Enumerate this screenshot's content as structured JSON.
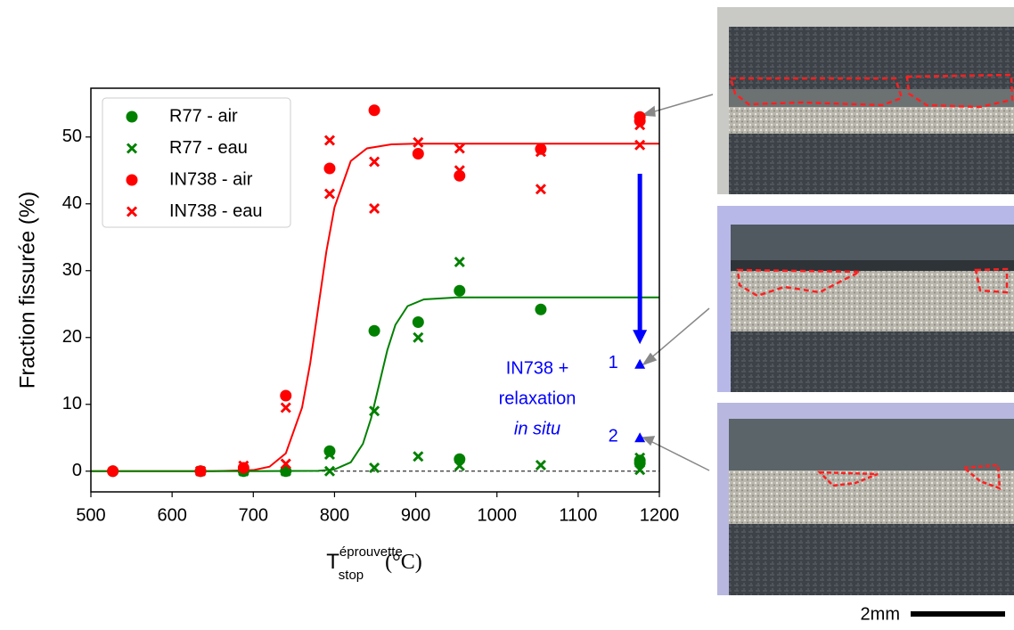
{
  "chart_data": {
    "type": "scatter",
    "ylabel": "Fraction fissurée (%)",
    "xlabel": {
      "main": "T",
      "sup": "éprouvette",
      "sub": "stop",
      "unit": "(°C)"
    },
    "xlim": [
      500,
      1200
    ],
    "ylim": [
      -3.1,
      57.3
    ],
    "xticks": [
      500,
      600,
      700,
      800,
      900,
      1000,
      1100,
      1200
    ],
    "yticks": [
      0,
      10,
      20,
      30,
      40,
      50
    ],
    "zero_line": true,
    "legend": "upper left",
    "series": [
      {
        "name": "R77 - air",
        "color": "#008000",
        "marker": "o",
        "x": [
          527,
          635,
          688,
          740,
          794,
          849,
          903,
          954,
          954,
          1054,
          1176,
          1176
        ],
        "values": [
          0,
          0,
          0,
          0,
          3,
          21,
          22.3,
          27,
          1.8,
          24.2,
          1.2,
          1.6
        ]
      },
      {
        "name": "R77 - eau",
        "color": "#008000",
        "marker": "x",
        "x": [
          635,
          688,
          740,
          794,
          794,
          849,
          849,
          903,
          903,
          954,
          954,
          1054,
          1176,
          1176
        ],
        "values": [
          0,
          0,
          0,
          2.5,
          0,
          9,
          0.5,
          20,
          2.2,
          31.3,
          0.8,
          0.9,
          2,
          0.2
        ]
      },
      {
        "name": "IN738 - air",
        "color": "#ff0000",
        "marker": "o",
        "x": [
          527,
          635,
          688,
          740,
          794,
          849,
          903,
          954,
          1054,
          1176,
          1176
        ],
        "values": [
          0,
          0,
          0.5,
          11.3,
          45.3,
          54,
          47.5,
          44.2,
          48.2,
          53,
          52.4
        ]
      },
      {
        "name": "IN738 - eau",
        "color": "#ff0000",
        "marker": "x",
        "x": [
          635,
          688,
          740,
          740,
          794,
          794,
          849,
          849,
          903,
          954,
          954,
          1054,
          1054,
          1176,
          1176
        ],
        "values": [
          0,
          0.8,
          9.5,
          1.1,
          49.5,
          41.5,
          46.3,
          39.3,
          49.2,
          48.3,
          45,
          47.8,
          42.2,
          51.8,
          48.8
        ]
      }
    ],
    "fits": [
      {
        "color": "#ff0000",
        "x": [
          500,
          600,
          650,
          700,
          720,
          740,
          760,
          770,
          780,
          790,
          800,
          820,
          840,
          870,
          900,
          1000,
          1200
        ],
        "values": [
          0,
          0,
          0,
          0.16,
          0.67,
          2.66,
          9.5,
          16.1,
          24.5,
          32.9,
          39.5,
          46.4,
          48.3,
          48.9,
          49,
          49,
          49
        ]
      },
      {
        "color": "#008000",
        "x": [
          500,
          700,
          780,
          800,
          820,
          835,
          845,
          855,
          865,
          875,
          890,
          910,
          950,
          1200
        ],
        "values": [
          0,
          0,
          0.05,
          0.26,
          1.33,
          4.1,
          7.9,
          13,
          18.1,
          21.9,
          24.7,
          25.7,
          26,
          26
        ]
      }
    ],
    "relaxation": {
      "color": "#0000ff",
      "x": [
        1176,
        1176
      ],
      "values": [
        16,
        5
      ],
      "labels": [
        "1",
        "2"
      ],
      "text": [
        "IN738 +",
        "relaxation",
        "in situ"
      ],
      "arrow_from": 44.5,
      "arrow_to": 19
    }
  },
  "scale_bar": "2mm"
}
